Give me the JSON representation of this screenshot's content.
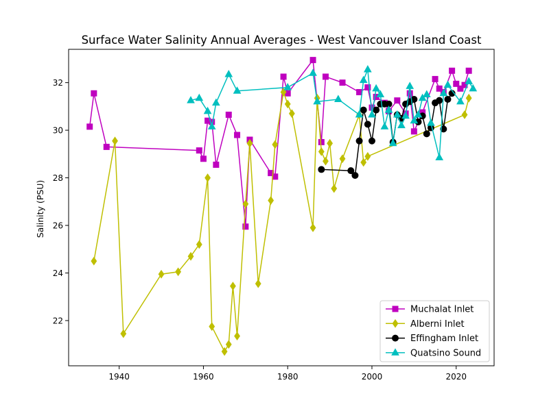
{
  "chart_data": {
    "type": "line",
    "title": "Surface Water Salinity Annual Averages - West Vancouver Island Coast",
    "xlabel": "",
    "ylabel": "Salinity (PSU)",
    "xlim": [
      1928,
      2029
    ],
    "ylim": [
      20.1,
      33.4
    ],
    "xticks": [
      1940,
      1960,
      1980,
      2000,
      2020
    ],
    "yticks": [
      22,
      24,
      26,
      28,
      30,
      32
    ],
    "grid": false,
    "legend_position": "lower-right",
    "series": [
      {
        "name": "Muchalat Inlet",
        "color": "#bf00bf",
        "marker": "square",
        "x": [
          1933,
          1934,
          1937,
          1959,
          1960,
          1961,
          1962,
          1963,
          1966,
          1968,
          1970,
          1971,
          1976,
          1977,
          1979,
          1980,
          1986,
          1988,
          1989,
          1993,
          1997,
          1999,
          2000,
          2001,
          2003,
          2004,
          2006,
          2008,
          2009,
          2010,
          2012,
          2015,
          2016,
          2017,
          2019,
          2020,
          2021,
          2022,
          2023
        ],
        "y": [
          30.15,
          31.55,
          29.3,
          29.15,
          28.8,
          30.4,
          30.35,
          28.55,
          30.65,
          29.8,
          25.95,
          29.6,
          28.2,
          28.05,
          32.25,
          31.55,
          32.95,
          29.5,
          32.25,
          32.0,
          31.6,
          31.8,
          30.95,
          31.4,
          31.15,
          30.8,
          31.25,
          30.7,
          31.55,
          29.95,
          30.75,
          32.15,
          31.75,
          31.6,
          32.5,
          31.95,
          31.75,
          31.9,
          32.5
        ]
      },
      {
        "name": "Alberni Inlet",
        "color": "#bfbf00",
        "marker": "diamond",
        "x": [
          1934,
          1939,
          1941,
          1950,
          1954,
          1957,
          1959,
          1961,
          1962,
          1965,
          1966,
          1967,
          1968,
          1970,
          1971,
          1973,
          1976,
          1977,
          1979,
          1980,
          1981,
          1986,
          1987,
          1988,
          1989,
          1990,
          1991,
          1993,
          1997,
          1998,
          1999,
          2022,
          2023
        ],
        "y": [
          24.5,
          29.55,
          21.45,
          23.95,
          24.05,
          24.7,
          25.2,
          28.0,
          21.75,
          20.7,
          21.0,
          23.45,
          21.35,
          26.9,
          29.45,
          23.55,
          27.05,
          29.4,
          31.6,
          31.1,
          30.7,
          25.9,
          31.35,
          29.1,
          28.7,
          29.45,
          27.55,
          28.8,
          30.65,
          28.65,
          28.9,
          30.65,
          31.35
        ]
      },
      {
        "name": "Effingham Inlet",
        "color": "#000000",
        "marker": "circle",
        "x": [
          1988,
          1995,
          1996,
          1997,
          1998,
          1999,
          2000,
          2001,
          2002,
          2003,
          2004,
          2005,
          2006,
          2007,
          2008,
          2009,
          2010,
          2011,
          2012,
          2013,
          2014,
          2015,
          2016,
          2017,
          2018,
          2019
        ],
        "y": [
          28.35,
          28.3,
          28.1,
          29.55,
          30.85,
          30.25,
          29.55,
          30.85,
          31.1,
          31.1,
          31.1,
          29.5,
          30.65,
          30.5,
          31.1,
          31.2,
          31.3,
          30.35,
          30.6,
          29.85,
          30.1,
          31.15,
          31.25,
          30.05,
          31.3,
          31.55
        ]
      },
      {
        "name": "Quatsino Sound",
        "color": "#00bfbf",
        "marker": "triangle",
        "x": [
          1957,
          1959,
          1961,
          1962,
          1963,
          1966,
          1968,
          1980,
          1986,
          1987,
          1992,
          1997,
          1998,
          1999,
          2000,
          2001,
          2002,
          2003,
          2004,
          2005,
          2006,
          2007,
          2008,
          2009,
          2010,
          2011,
          2012,
          2013,
          2014,
          2016,
          2017,
          2018,
          2021,
          2023,
          2024
        ],
        "y": [
          31.25,
          31.35,
          30.8,
          30.15,
          31.15,
          32.35,
          31.65,
          31.8,
          32.4,
          31.2,
          31.3,
          30.65,
          32.1,
          32.55,
          30.65,
          31.75,
          31.5,
          30.15,
          30.85,
          29.45,
          30.65,
          30.2,
          30.6,
          31.85,
          30.4,
          30.65,
          31.35,
          31.5,
          30.3,
          28.85,
          31.55,
          31.9,
          31.2,
          32.05,
          31.75
        ]
      }
    ]
  }
}
